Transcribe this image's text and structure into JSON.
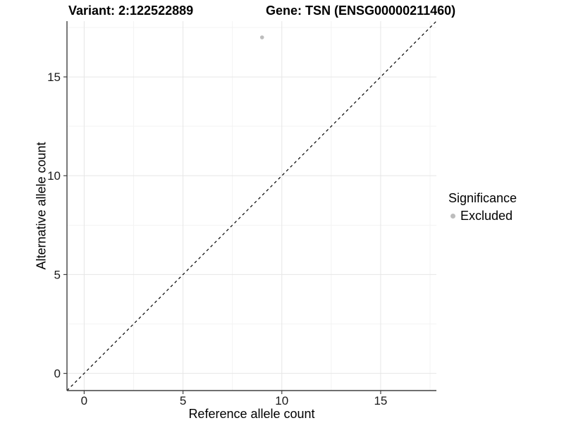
{
  "chart_data": {
    "type": "scatter",
    "title_left": "Variant: 2:122522889",
    "title_right": "Gene: TSN (ENSG00000211460)",
    "xlabel": "Reference allele count",
    "ylabel": "Alternative allele count",
    "xlim": [
      -0.87,
      17.82
    ],
    "ylim": [
      -0.87,
      17.82
    ],
    "x_ticks": [
      0,
      5,
      10,
      15
    ],
    "y_ticks": [
      0,
      5,
      10,
      15
    ],
    "x_minor_ticks": [
      2.5,
      7.5,
      12.5,
      17.5
    ],
    "y_minor_ticks": [
      2.5,
      7.5,
      12.5,
      17.5
    ],
    "grid": true,
    "series": [
      {
        "name": "Excluded",
        "color": "#bdbdbd",
        "points": [
          {
            "x": 9,
            "y": 17
          }
        ]
      }
    ],
    "reference_line": {
      "type": "identity",
      "style": "dashed",
      "color": "#000000"
    },
    "legend": {
      "title": "Significance",
      "position": "right",
      "items": [
        {
          "label": "Excluded",
          "color": "#bdbdbd"
        }
      ]
    },
    "colors": {
      "background": "#ffffff",
      "grid_major": "#e6e6e6",
      "grid_minor": "#f3f3f3",
      "axis_line": "#404040",
      "tick_text": "#1a1a1a"
    }
  }
}
